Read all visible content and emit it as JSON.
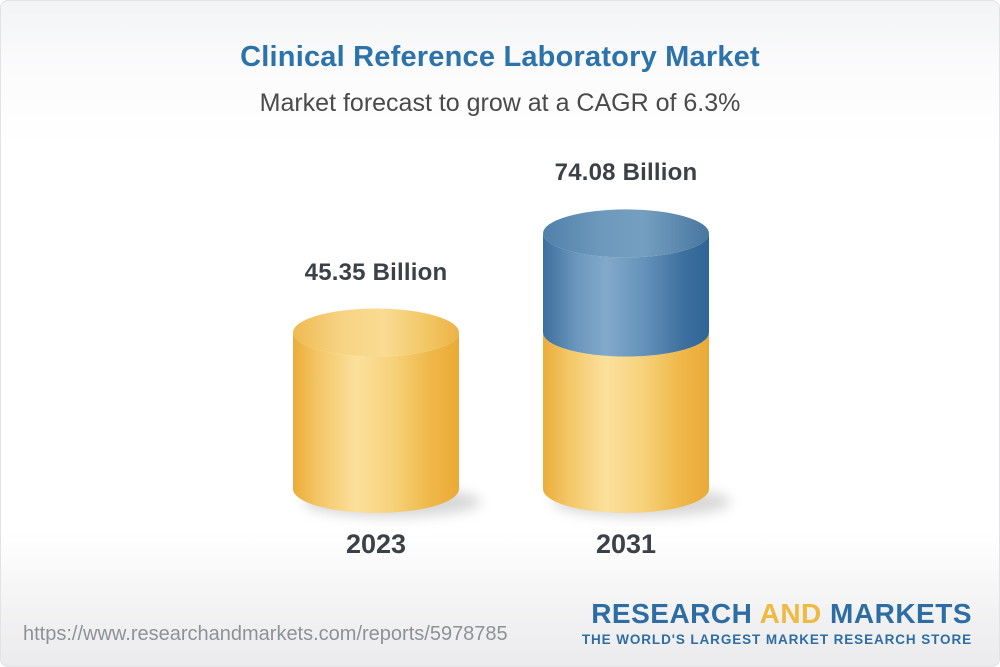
{
  "header": {
    "title": "Clinical Reference Laboratory Market",
    "subtitle": "Market forecast to grow at a CAGR of 6.3%"
  },
  "chart_data": {
    "type": "bar",
    "variant": "3d-cylinder-pictograph",
    "title": "Clinical Reference Laboratory Market",
    "subtitle": "Market forecast to grow at a CAGR of 6.3%",
    "unit": "Billion",
    "cagr_percent": 6.3,
    "categories": [
      "2023",
      "2031"
    ],
    "values": [
      45.35,
      74.08
    ],
    "value_labels": [
      "45.35 Billion",
      "74.08 Billion"
    ],
    "stacked_growth": true,
    "axes": "none",
    "legend": "none",
    "colors": {
      "baseline_segment": "#F5C867",
      "growth_segment": "#4C7EAC",
      "label_text": "#3C4148"
    }
  },
  "footer": {
    "url": "https://www.researchandmarkets.com/reports/5978785",
    "logo": {
      "part1": "RESEARCH",
      "part2": "AND",
      "part3": "MARKETS",
      "tagline": "THE WORLD'S LARGEST MARKET RESEARCH STORE"
    }
  }
}
